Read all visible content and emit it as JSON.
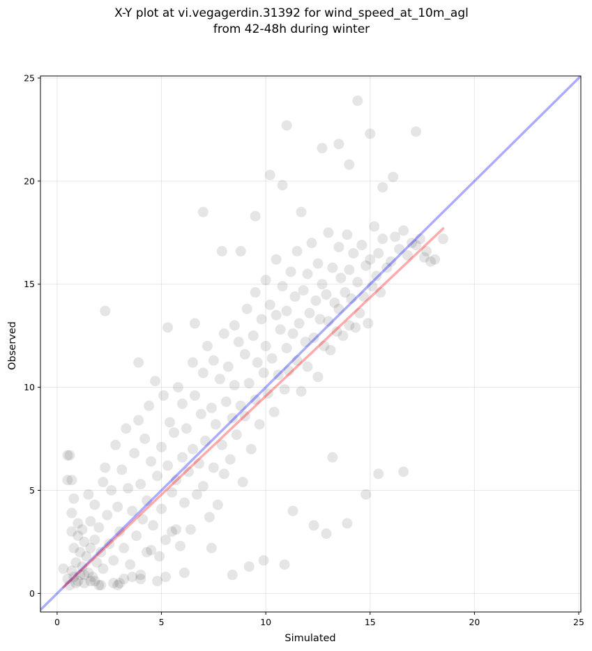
{
  "chart_data": {
    "type": "scatter",
    "title": "X-Y plot at vi.vegagerdin.31392 for wind_speed_at_10m_agl",
    "subtitle": "from 42-48h during winter",
    "xlabel": "Simulated",
    "ylabel": "Observed",
    "xlim": [
      -0.8,
      25.1
    ],
    "ylim": [
      -0.9,
      25.1
    ],
    "xticks": [
      0,
      5,
      10,
      15,
      20,
      25
    ],
    "yticks": [
      0,
      5,
      10,
      15,
      20,
      25
    ],
    "grid": true,
    "colors": {
      "points": "#000000",
      "identity_line": "#0000ff",
      "fit_line": "#ff0000",
      "grid": "#b0b0b0"
    },
    "identity_line": {
      "x": [
        -0.8,
        25.1
      ],
      "y": [
        -0.8,
        25.1
      ]
    },
    "fit_line": {
      "x": [
        0.3,
        18.5
      ],
      "y": [
        0.3,
        17.7
      ]
    },
    "scatter": {
      "description_note": "",
      "x": [
        0.3,
        0.5,
        0.5,
        0.6,
        0.6,
        0.7,
        0.7,
        0.7,
        0.8,
        0.8,
        0.8,
        0.9,
        0.9,
        1.0,
        1.0,
        1.0,
        1.1,
        1.1,
        1.2,
        1.2,
        1.3,
        1.3,
        1.4,
        1.5,
        1.5,
        1.6,
        1.6,
        1.7,
        1.8,
        1.8,
        1.9,
        2.0,
        2.0,
        2.1,
        2.2,
        2.2,
        2.3,
        2.4,
        2.5,
        2.6,
        2.7,
        2.8,
        2.9,
        3.0,
        3.0,
        3.1,
        3.2,
        3.3,
        3.4,
        3.5,
        3.6,
        3.7,
        3.8,
        3.9,
        4.0,
        4.0,
        4.1,
        4.2,
        4.3,
        4.4,
        4.5,
        4.5,
        4.6,
        4.7,
        4.8,
        4.9,
        5.0,
        5.0,
        5.1,
        5.2,
        5.3,
        5.4,
        5.5,
        5.5,
        5.6,
        5.7,
        5.8,
        5.9,
        6.0,
        6.0,
        6.1,
        6.2,
        6.3,
        6.4,
        6.5,
        6.5,
        6.6,
        6.7,
        6.8,
        6.9,
        7.0,
        7.0,
        7.1,
        7.2,
        7.3,
        7.4,
        7.5,
        7.5,
        7.6,
        7.7,
        7.8,
        7.9,
        8.0,
        8.0,
        8.1,
        8.2,
        8.3,
        8.4,
        8.5,
        8.5,
        8.6,
        8.7,
        8.8,
        8.9,
        9.0,
        9.0,
        9.1,
        9.2,
        9.3,
        9.4,
        9.5,
        9.5,
        9.6,
        9.7,
        9.8,
        9.9,
        10.0,
        10.0,
        10.1,
        10.2,
        10.3,
        10.4,
        10.5,
        10.5,
        10.6,
        10.7,
        10.8,
        10.9,
        11.0,
        11.0,
        11.1,
        11.2,
        11.3,
        11.4,
        11.5,
        11.5,
        11.6,
        11.7,
        11.8,
        11.9,
        12.0,
        12.0,
        12.1,
        12.2,
        12.3,
        12.4,
        12.5,
        12.5,
        12.6,
        12.7,
        12.8,
        12.9,
        13.0,
        13.0,
        13.1,
        13.2,
        13.3,
        13.4,
        13.5,
        13.5,
        13.6,
        13.7,
        13.8,
        13.9,
        14.0,
        14.0,
        14.1,
        14.2,
        14.3,
        14.4,
        14.5,
        14.6,
        14.7,
        14.8,
        14.9,
        15.0,
        15.1,
        15.2,
        15.3,
        15.4,
        15.5,
        15.6,
        15.8,
        16.0,
        16.2,
        16.4,
        16.6,
        16.8,
        17.0,
        17.2,
        17.4,
        17.6,
        17.9,
        18.1,
        18.5,
        2.3,
        5.3,
        3.9,
        7.0,
        11.0,
        14.4,
        17.2,
        15.0,
        13.5,
        12.7,
        0.5,
        0.7,
        8.8,
        9.5,
        10.2,
        11.7,
        10.8,
        16.1,
        15.6,
        14.0,
        6.6,
        7.9,
        5.7,
        4.3,
        3.2,
        2.1,
        1.6,
        9.2,
        10.9,
        12.3,
        13.9,
        8.4,
        6.1,
        4.8,
        3.6,
        2.7,
        1.3,
        11.3,
        12.9,
        14.8,
        9.9,
        7.4,
        5.2,
        4.0,
        2.9,
        1.8,
        15.4,
        16.6,
        17.7,
        13.2
      ],
      "y": [
        1.2,
        0.7,
        5.5,
        6.7,
        0.4,
        3.0,
        3.9,
        1.1,
        0.8,
        4.6,
        2.2,
        0.5,
        1.5,
        3.4,
        0.6,
        2.8,
        0.9,
        2.0,
        1.3,
        3.1,
        2.5,
        0.5,
        1.8,
        4.8,
        1.0,
        2.2,
        3.5,
        0.8,
        2.6,
        4.3,
        1.5,
        0.4,
        3.2,
        2.0,
        5.4,
        1.2,
        6.1,
        3.8,
        2.4,
        5.0,
        1.6,
        7.2,
        4.2,
        0.5,
        3.0,
        6.0,
        2.2,
        8.0,
        5.1,
        1.4,
        4.0,
        6.8,
        2.8,
        8.4,
        5.3,
        0.9,
        3.6,
        7.5,
        4.5,
        9.1,
        2.1,
        6.4,
        3.3,
        10.3,
        5.7,
        1.8,
        7.1,
        4.1,
        9.6,
        2.6,
        6.2,
        8.3,
        4.9,
        3.0,
        7.8,
        5.5,
        10.0,
        2.3,
        6.6,
        9.2,
        4.4,
        8.0,
        5.9,
        3.1,
        11.2,
        7.0,
        9.6,
        4.8,
        6.3,
        8.7,
        10.7,
        5.2,
        7.4,
        12.0,
        3.7,
        9.0,
        6.1,
        11.3,
        8.2,
        4.3,
        10.4,
        7.2,
        12.6,
        5.8,
        9.3,
        11.0,
        6.5,
        8.5,
        13.0,
        10.1,
        7.7,
        12.2,
        9.1,
        5.4,
        11.6,
        8.6,
        13.8,
        10.2,
        7.0,
        12.5,
        9.4,
        14.6,
        11.2,
        8.2,
        13.3,
        10.7,
        15.2,
        12.0,
        9.7,
        14.0,
        11.4,
        8.8,
        13.5,
        16.2,
        10.6,
        12.8,
        14.9,
        9.9,
        11.9,
        13.7,
        10.8,
        15.6,
        12.6,
        14.4,
        11.3,
        16.6,
        13.1,
        9.8,
        14.7,
        12.2,
        15.5,
        11.0,
        13.6,
        17.0,
        12.4,
        14.2,
        10.5,
        16.0,
        13.3,
        15.0,
        12.0,
        14.5,
        17.5,
        13.2,
        11.8,
        15.8,
        14.1,
        12.7,
        16.8,
        13.8,
        15.3,
        12.5,
        14.6,
        17.4,
        13.0,
        15.7,
        14.3,
        16.5,
        12.9,
        15.1,
        13.6,
        16.9,
        14.4,
        15.9,
        13.1,
        16.2,
        14.9,
        17.8,
        15.4,
        16.5,
        14.6,
        17.2,
        15.8,
        16.1,
        17.3,
        16.7,
        17.6,
        16.4,
        17.0,
        16.9,
        17.2,
        16.3,
        16.1,
        16.2,
        17.2,
        13.7,
        12.9,
        11.2,
        18.5,
        22.7,
        23.9,
        22.4,
        22.3,
        21.8,
        21.6,
        6.7,
        5.5,
        16.6,
        18.3,
        20.3,
        18.5,
        19.8,
        20.2,
        19.7,
        20.8,
        13.1,
        16.6,
        3.1,
        2.0,
        0.7,
        0.4,
        0.6,
        1.3,
        1.4,
        3.3,
        3.4,
        0.9,
        1.0,
        0.6,
        0.8,
        0.5,
        0.9,
        4.0,
        2.9,
        4.8,
        1.6,
        2.2,
        0.8,
        0.7,
        0.4,
        0.6,
        5.8,
        5.9,
        16.6,
        6.6
      ]
    }
  }
}
